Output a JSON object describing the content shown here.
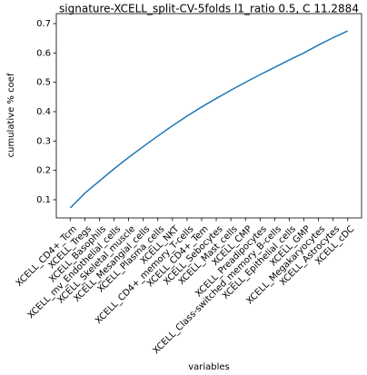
{
  "chart_data": {
    "type": "line",
    "title": "signature-XCELL_split-CV-5folds l1_ratio 0.5, C 11.2884",
    "xlabel": "variables",
    "ylabel": "cumulative % coef",
    "categories": [
      "XCELL_CD4+_Tcm",
      "XCELL_Tregs",
      "XCELL_Basophils",
      "XCELL_mv_Endothelial_cells",
      "XCELL_Skeletal_muscle",
      "XCELL_Mesangial_cells",
      "XCELL_Plasma_cells",
      "XCELL_NKT",
      "XCELL_CD4+_memory_T-cells",
      "XCELL_CD4+_Tem",
      "XCELL_Sebocytes",
      "XCELL_Mast_cells",
      "XCELL_CMP",
      "XCELL_Preadipocytes",
      "XCELL_Class-switched_memory_B-cells",
      "XCELL_Epithelial_cells",
      "XCELL_GMP",
      "XCELL_Megakaryocytes",
      "XCELL_Astrocytes",
      "XCELL_cDC"
    ],
    "series": [
      {
        "name": "cumulative % coef",
        "color": "#1f77b4",
        "values": [
          0.072,
          0.122,
          0.164,
          0.205,
          0.244,
          0.281,
          0.317,
          0.352,
          0.385,
          0.416,
          0.445,
          0.473,
          0.5,
          0.526,
          0.551,
          0.576,
          0.6,
          0.627,
          0.652,
          0.675
        ]
      }
    ],
    "ylim": [
      0.038,
      0.734
    ],
    "yticks": [
      0.1,
      0.2,
      0.3,
      0.4,
      0.5,
      0.6,
      0.7
    ],
    "grid": false
  }
}
